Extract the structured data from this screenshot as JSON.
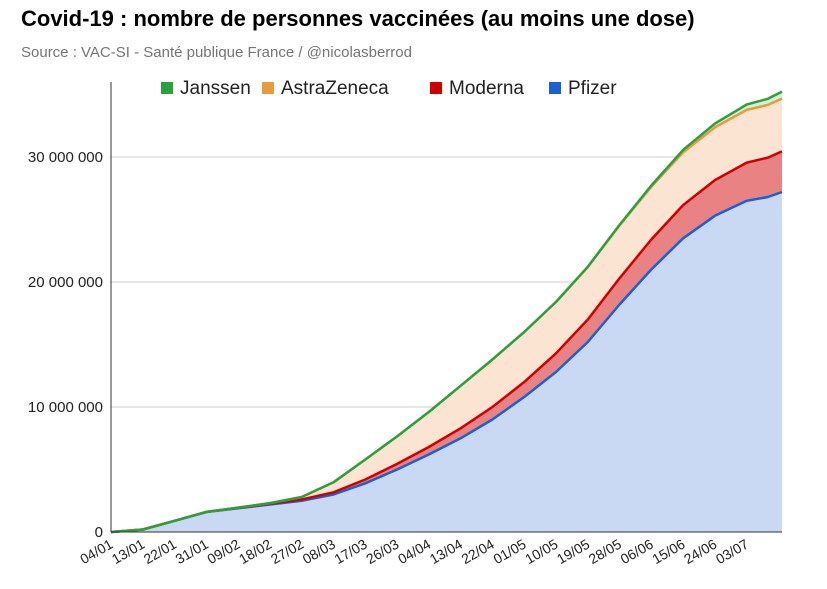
{
  "chart_data": {
    "type": "area",
    "stacked": true,
    "title": "Covid-19 : nombre de personnes vaccinées (au moins une dose)",
    "subtitle": "Source : VAC-SI - Santé publique France / @nicolasberrod",
    "legend_position": "top",
    "grid": true,
    "ylim": [
      0,
      36000000
    ],
    "yticks": [
      {
        "value": 0,
        "label": "0"
      },
      {
        "value": 10000000,
        "label": "10 000 000"
      },
      {
        "value": 20000000,
        "label": "20 000 000"
      },
      {
        "value": 30000000,
        "label": "30 000 000"
      }
    ],
    "x_start": "04/01",
    "xticks": [
      "04/01",
      "13/01",
      "22/01",
      "31/01",
      "09/02",
      "18/02",
      "27/02",
      "08/03",
      "17/03",
      "26/03",
      "04/04",
      "13/04",
      "22/04",
      "01/05",
      "10/05",
      "19/05",
      "28/05",
      "06/06",
      "15/06",
      "24/06",
      "03/07"
    ],
    "x_end_index": 190,
    "x": [
      0,
      9,
      18,
      27,
      36,
      45,
      54,
      63,
      72,
      81,
      90,
      99,
      108,
      117,
      126,
      135,
      144,
      153,
      162,
      171,
      180,
      186,
      190
    ],
    "series": [
      {
        "name": "Pfizer",
        "color": "#1a5fd6",
        "fill": "#c9d9f3",
        "values": [
          0,
          200000,
          900000,
          1600000,
          1900000,
          2200000,
          2500000,
          3000000,
          3900000,
          5000000,
          6200000,
          7500000,
          9000000,
          10800000,
          12800000,
          15200000,
          18200000,
          21000000,
          23500000,
          25300000,
          26500000,
          26800000,
          27200000
        ]
      },
      {
        "name": "Moderna",
        "color": "#d00000",
        "fill": "#e98282",
        "values": [
          0,
          0,
          0,
          10000,
          30000,
          60000,
          100000,
          180000,
          300000,
          450000,
          600000,
          800000,
          1000000,
          1200000,
          1500000,
          1800000,
          2100000,
          2400000,
          2650000,
          2850000,
          3050000,
          3150000,
          3250000
        ]
      },
      {
        "name": "AstraZeneca",
        "color": "#e89a3c",
        "fill": "#fbe4d2",
        "values": [
          0,
          0,
          0,
          0,
          20000,
          50000,
          200000,
          800000,
          1600000,
          2200000,
          2800000,
          3400000,
          3800000,
          4000000,
          4100000,
          4200000,
          4220000,
          4220000,
          4220000,
          4220000,
          4220000,
          4220000,
          4230000
        ]
      },
      {
        "name": "Janssen",
        "color": "#2aa13e",
        "fill": "#d6f0d6",
        "values": [
          0,
          0,
          0,
          0,
          0,
          0,
          0,
          0,
          0,
          0,
          0,
          0,
          0,
          0,
          5000,
          20000,
          50000,
          100000,
          200000,
          300000,
          430000,
          490000,
          550000
        ]
      }
    ]
  }
}
